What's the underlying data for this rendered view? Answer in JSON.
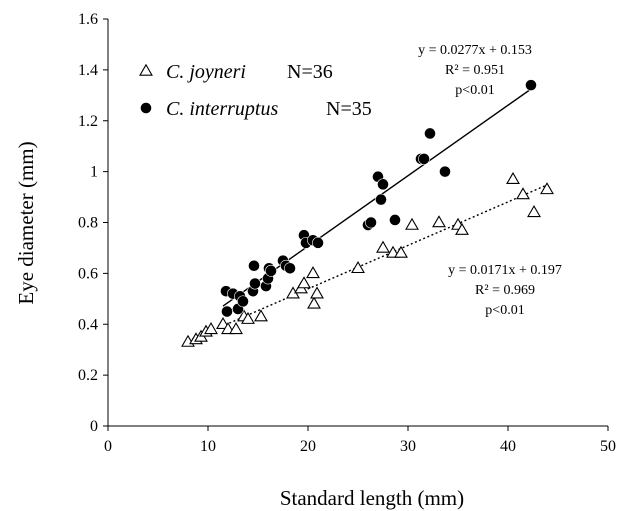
{
  "chart_data": {
    "type": "scatter",
    "xlabel": "Standard length (mm)",
    "ylabel": "Eye diameter (mm)",
    "xlim": [
      0,
      50
    ],
    "ylim": [
      0,
      1.6
    ],
    "xticks": [
      "0",
      "10",
      "20",
      "30",
      "40",
      "50"
    ],
    "yticks": [
      "0",
      "0.2",
      "0.4",
      "0.6",
      "0.8",
      "1",
      "1.2",
      "1.4",
      "1.6"
    ],
    "grid": false,
    "legend_position": "top-left",
    "series": [
      {
        "name": "C. joyneri",
        "legend_n": "N=36",
        "marker": "open-triangle",
        "line_style": "dotted",
        "color": "#000000",
        "fit": {
          "slope": 0.0171,
          "intercept": 0.197,
          "x_range": [
            8,
            44
          ]
        },
        "equation_lines": [
          "y = 0.0171x + 0.197",
          "R² = 0.969",
          "p<0.01"
        ],
        "points": [
          [
            8.0,
            0.33
          ],
          [
            8.8,
            0.34
          ],
          [
            9.3,
            0.35
          ],
          [
            9.8,
            0.37
          ],
          [
            10.3,
            0.38
          ],
          [
            11.5,
            0.4
          ],
          [
            12.0,
            0.38
          ],
          [
            12.8,
            0.38
          ],
          [
            13.6,
            0.43
          ],
          [
            14.0,
            0.42
          ],
          [
            15.3,
            0.43
          ],
          [
            18.5,
            0.52
          ],
          [
            19.3,
            0.54
          ],
          [
            19.6,
            0.56
          ],
          [
            20.5,
            0.6
          ],
          [
            20.6,
            0.48
          ],
          [
            20.9,
            0.52
          ],
          [
            25.0,
            0.62
          ],
          [
            27.5,
            0.7
          ],
          [
            28.5,
            0.68
          ],
          [
            29.3,
            0.68
          ],
          [
            30.4,
            0.79
          ],
          [
            33.1,
            0.8
          ],
          [
            35.0,
            0.79
          ],
          [
            35.4,
            0.77
          ],
          [
            40.5,
            0.97
          ],
          [
            41.5,
            0.91
          ],
          [
            42.6,
            0.84
          ],
          [
            43.9,
            0.93
          ]
        ]
      },
      {
        "name": "C. interruptus",
        "legend_n": "N=35",
        "marker": "filled-circle",
        "line_style": "solid",
        "color": "#000000",
        "fit": {
          "slope": 0.0277,
          "intercept": 0.153,
          "x_range": [
            11.5,
            42.5
          ]
        },
        "equation_lines": [
          "y = 0.0277x + 0.153",
          "R² = 0.951",
          "p<0.01"
        ],
        "points": [
          [
            11.8,
            0.53
          ],
          [
            11.9,
            0.45
          ],
          [
            12.5,
            0.52
          ],
          [
            13.0,
            0.46
          ],
          [
            13.2,
            0.51
          ],
          [
            13.5,
            0.49
          ],
          [
            14.5,
            0.53
          ],
          [
            14.6,
            0.63
          ],
          [
            14.7,
            0.56
          ],
          [
            15.8,
            0.55
          ],
          [
            16.0,
            0.58
          ],
          [
            16.1,
            0.62
          ],
          [
            16.3,
            0.61
          ],
          [
            17.5,
            0.65
          ],
          [
            17.8,
            0.63
          ],
          [
            18.2,
            0.62
          ],
          [
            19.6,
            0.75
          ],
          [
            19.8,
            0.72
          ],
          [
            20.5,
            0.73
          ],
          [
            21.0,
            0.72
          ],
          [
            26.0,
            0.79
          ],
          [
            26.3,
            0.8
          ],
          [
            27.0,
            0.98
          ],
          [
            27.3,
            0.89
          ],
          [
            27.5,
            0.95
          ],
          [
            28.7,
            0.81
          ],
          [
            31.3,
            1.05
          ],
          [
            31.6,
            1.05
          ],
          [
            32.2,
            1.15
          ],
          [
            33.7,
            1.0
          ],
          [
            42.3,
            1.34
          ]
        ]
      }
    ]
  }
}
